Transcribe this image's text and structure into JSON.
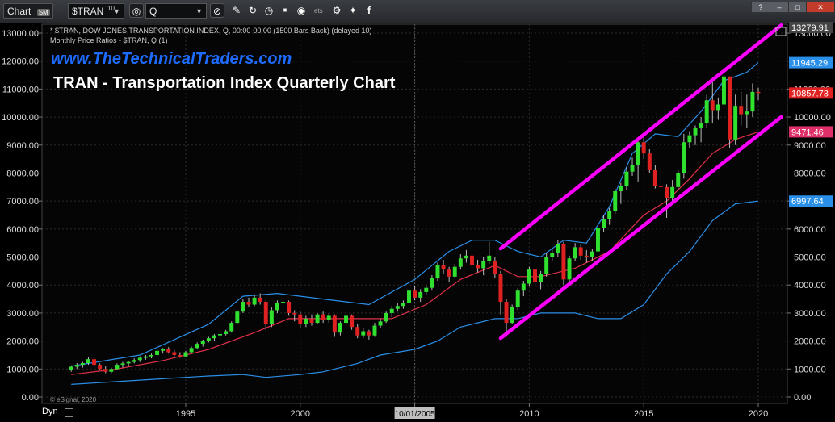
{
  "toolbar": {
    "chart_tab": "Chart",
    "chart_badge": "SM",
    "symbol": "$TRAN",
    "symbol_sup": "10",
    "interval": "Q",
    "icons": [
      "target-icon",
      "pencil-icon",
      "refresh-icon",
      "clock-icon",
      "link-icon",
      "eye-icon",
      "settings-icon",
      "twitter-icon",
      "facebook-icon"
    ],
    "small_text": "ets"
  },
  "header": {
    "line1": "* $TRAN, DOW JONES TRANSPORTATION INDEX, Q, 00:00-00:00 (1500 Bars Back) (delayed 10)",
    "line2": "Monthly Price Ratios - $TRAN, Q (1)",
    "website": "www.TheTechnicalTraders.com",
    "title": "TRAN - Transportation Index Quarterly Chart",
    "copyright": "© eSignal, 2020"
  },
  "footer": {
    "dyn_label": "Dyn",
    "cursor_date": "10/01/2005"
  },
  "colors": {
    "background": "#000000",
    "bull": "#2fe02f",
    "bear": "#e02121",
    "channel": "#ff00ff",
    "bollinger": "#2a8fe8",
    "ma": "#e0304a",
    "website": "#1e6cff"
  },
  "chart_data": {
    "type": "candlestick",
    "title": "TRAN - Transportation Index Quarterly Chart",
    "x_ticks": [
      "1995",
      "2000",
      "2005",
      "2010",
      "2015",
      "2020"
    ],
    "y_ticks": [
      "0.00",
      "1000.00",
      "2000.00",
      "3000.00",
      "4000.00",
      "5000.00",
      "6000.00",
      "7000.00",
      "8000.00",
      "9000.00",
      "10000.00",
      "11000.00",
      "12000.00",
      "13000.00"
    ],
    "ylim": [
      0,
      13279.91
    ],
    "price_labels": [
      {
        "label": "13279.91",
        "value": 13279.91,
        "color": "#444444"
      },
      {
        "label": "11945.29",
        "value": 11945.29,
        "color": "#2a8fe8"
      },
      {
        "label": "10857.73",
        "value": 10857.73,
        "color": "#e02121"
      },
      {
        "label": "9471.46",
        "value": 9471.46,
        "color": "#e0306a"
      },
      {
        "label": "6997.64",
        "value": 6997.64,
        "color": "#2a8fe8"
      }
    ],
    "candles": [
      {
        "t": 1990.0,
        "o": 960,
        "h": 1130,
        "l": 900,
        "c": 1080
      },
      {
        "t": 1990.25,
        "o": 1080,
        "h": 1210,
        "l": 1000,
        "c": 1150
      },
      {
        "t": 1990.5,
        "o": 1150,
        "h": 1250,
        "l": 1050,
        "c": 1210
      },
      {
        "t": 1990.75,
        "o": 1210,
        "h": 1420,
        "l": 1150,
        "c": 1350
      },
      {
        "t": 1991.0,
        "o": 1350,
        "h": 1450,
        "l": 1100,
        "c": 1150
      },
      {
        "t": 1991.25,
        "o": 1150,
        "h": 1200,
        "l": 950,
        "c": 1000
      },
      {
        "t": 1991.5,
        "o": 1000,
        "h": 1100,
        "l": 850,
        "c": 900
      },
      {
        "t": 1991.75,
        "o": 900,
        "h": 1050,
        "l": 850,
        "c": 1000
      },
      {
        "t": 1992.0,
        "o": 1000,
        "h": 1200,
        "l": 950,
        "c": 1150
      },
      {
        "t": 1992.25,
        "o": 1150,
        "h": 1250,
        "l": 1050,
        "c": 1200
      },
      {
        "t": 1992.5,
        "o": 1200,
        "h": 1300,
        "l": 1120,
        "c": 1250
      },
      {
        "t": 1992.75,
        "o": 1250,
        "h": 1380,
        "l": 1200,
        "c": 1320
      },
      {
        "t": 1993.0,
        "o": 1320,
        "h": 1450,
        "l": 1250,
        "c": 1400
      },
      {
        "t": 1993.25,
        "o": 1400,
        "h": 1500,
        "l": 1330,
        "c": 1450
      },
      {
        "t": 1993.5,
        "o": 1450,
        "h": 1550,
        "l": 1380,
        "c": 1500
      },
      {
        "t": 1993.75,
        "o": 1500,
        "h": 1700,
        "l": 1450,
        "c": 1650
      },
      {
        "t": 1994.0,
        "o": 1650,
        "h": 1750,
        "l": 1550,
        "c": 1700
      },
      {
        "t": 1994.25,
        "o": 1700,
        "h": 1780,
        "l": 1550,
        "c": 1600
      },
      {
        "t": 1994.5,
        "o": 1600,
        "h": 1680,
        "l": 1450,
        "c": 1500
      },
      {
        "t": 1994.75,
        "o": 1500,
        "h": 1600,
        "l": 1400,
        "c": 1450
      },
      {
        "t": 1995.0,
        "o": 1450,
        "h": 1650,
        "l": 1420,
        "c": 1600
      },
      {
        "t": 1995.25,
        "o": 1600,
        "h": 1800,
        "l": 1550,
        "c": 1750
      },
      {
        "t": 1995.5,
        "o": 1750,
        "h": 1950,
        "l": 1700,
        "c": 1900
      },
      {
        "t": 1995.75,
        "o": 1900,
        "h": 2050,
        "l": 1800,
        "c": 2000
      },
      {
        "t": 1996.0,
        "o": 2000,
        "h": 2150,
        "l": 1950,
        "c": 2100
      },
      {
        "t": 1996.25,
        "o": 2100,
        "h": 2250,
        "l": 2000,
        "c": 2200
      },
      {
        "t": 1996.5,
        "o": 2200,
        "h": 2300,
        "l": 2050,
        "c": 2250
      },
      {
        "t": 1996.75,
        "o": 2250,
        "h": 2400,
        "l": 2200,
        "c": 2350
      },
      {
        "t": 1997.0,
        "o": 2350,
        "h": 2700,
        "l": 2300,
        "c": 2650
      },
      {
        "t": 1997.25,
        "o": 2650,
        "h": 3100,
        "l": 2600,
        "c": 3050
      },
      {
        "t": 1997.5,
        "o": 3050,
        "h": 3500,
        "l": 3000,
        "c": 3400
      },
      {
        "t": 1997.75,
        "o": 3400,
        "h": 3550,
        "l": 3200,
        "c": 3300
      },
      {
        "t": 1998.0,
        "o": 3300,
        "h": 3650,
        "l": 3250,
        "c": 3550
      },
      {
        "t": 1998.25,
        "o": 3550,
        "h": 3700,
        "l": 3300,
        "c": 3400
      },
      {
        "t": 1998.5,
        "o": 3400,
        "h": 3450,
        "l": 2400,
        "c": 2600
      },
      {
        "t": 1998.75,
        "o": 2600,
        "h": 3200,
        "l": 2500,
        "c": 3100
      },
      {
        "t": 1999.0,
        "o": 3100,
        "h": 3450,
        "l": 3000,
        "c": 3350
      },
      {
        "t": 1999.25,
        "o": 3350,
        "h": 3550,
        "l": 3200,
        "c": 3400
      },
      {
        "t": 1999.5,
        "o": 3400,
        "h": 3450,
        "l": 2900,
        "c": 3000
      },
      {
        "t": 1999.75,
        "o": 3000,
        "h": 3100,
        "l": 2700,
        "c": 2950
      },
      {
        "t": 2000.0,
        "o": 2950,
        "h": 3050,
        "l": 2450,
        "c": 2600
      },
      {
        "t": 2000.25,
        "o": 2600,
        "h": 2900,
        "l": 2500,
        "c": 2800
      },
      {
        "t": 2000.5,
        "o": 2800,
        "h": 2950,
        "l": 2550,
        "c": 2650
      },
      {
        "t": 2000.75,
        "o": 2650,
        "h": 3000,
        "l": 2600,
        "c": 2950
      },
      {
        "t": 2001.0,
        "o": 2950,
        "h": 3050,
        "l": 2650,
        "c": 2750
      },
      {
        "t": 2001.25,
        "o": 2750,
        "h": 3000,
        "l": 2650,
        "c": 2900
      },
      {
        "t": 2001.5,
        "o": 2900,
        "h": 2950,
        "l": 2150,
        "c": 2300
      },
      {
        "t": 2001.75,
        "o": 2300,
        "h": 2700,
        "l": 2200,
        "c": 2650
      },
      {
        "t": 2002.0,
        "o": 2650,
        "h": 3000,
        "l": 2550,
        "c": 2900
      },
      {
        "t": 2002.25,
        "o": 2900,
        "h": 2950,
        "l": 2400,
        "c": 2500
      },
      {
        "t": 2002.5,
        "o": 2500,
        "h": 2600,
        "l": 2100,
        "c": 2200
      },
      {
        "t": 2002.75,
        "o": 2200,
        "h": 2450,
        "l": 2100,
        "c": 2350
      },
      {
        "t": 2003.0,
        "o": 2350,
        "h": 2400,
        "l": 2050,
        "c": 2200
      },
      {
        "t": 2003.25,
        "o": 2200,
        "h": 2650,
        "l": 2150,
        "c": 2550
      },
      {
        "t": 2003.5,
        "o": 2550,
        "h": 2800,
        "l": 2450,
        "c": 2700
      },
      {
        "t": 2003.75,
        "o": 2700,
        "h": 3050,
        "l": 2650,
        "c": 3000
      },
      {
        "t": 2004.0,
        "o": 3000,
        "h": 3250,
        "l": 2850,
        "c": 3150
      },
      {
        "t": 2004.25,
        "o": 3150,
        "h": 3350,
        "l": 3050,
        "c": 3250
      },
      {
        "t": 2004.5,
        "o": 3250,
        "h": 3450,
        "l": 3150,
        "c": 3350
      },
      {
        "t": 2004.75,
        "o": 3350,
        "h": 3850,
        "l": 3300,
        "c": 3800
      },
      {
        "t": 2005.0,
        "o": 3800,
        "h": 3950,
        "l": 3450,
        "c": 3550
      },
      {
        "t": 2005.25,
        "o": 3550,
        "h": 3850,
        "l": 3400,
        "c": 3750
      },
      {
        "t": 2005.5,
        "o": 3750,
        "h": 4000,
        "l": 3650,
        "c": 3900
      },
      {
        "t": 2005.75,
        "o": 3900,
        "h": 4350,
        "l": 3800,
        "c": 4250
      },
      {
        "t": 2006.0,
        "o": 4250,
        "h": 4800,
        "l": 4150,
        "c": 4700
      },
      {
        "t": 2006.25,
        "o": 4700,
        "h": 4900,
        "l": 4400,
        "c": 4550
      },
      {
        "t": 2006.5,
        "o": 4550,
        "h": 4650,
        "l": 4100,
        "c": 4300
      },
      {
        "t": 2006.75,
        "o": 4300,
        "h": 4750,
        "l": 4250,
        "c": 4650
      },
      {
        "t": 2007.0,
        "o": 4650,
        "h": 5100,
        "l": 4550,
        "c": 4950
      },
      {
        "t": 2007.25,
        "o": 4950,
        "h": 5250,
        "l": 4800,
        "c": 5050
      },
      {
        "t": 2007.5,
        "o": 5050,
        "h": 5150,
        "l": 4500,
        "c": 4700
      },
      {
        "t": 2007.75,
        "o": 4700,
        "h": 4900,
        "l": 4450,
        "c": 4600
      },
      {
        "t": 2008.0,
        "o": 4600,
        "h": 5000,
        "l": 4350,
        "c": 4850
      },
      {
        "t": 2008.25,
        "o": 4850,
        "h": 5550,
        "l": 4750,
        "c": 5050
      },
      {
        "t": 2008.5,
        "o": 4850,
        "h": 5000,
        "l": 4250,
        "c": 4400
      },
      {
        "t": 2008.75,
        "o": 4400,
        "h": 4500,
        "l": 2950,
        "c": 3400
      },
      {
        "t": 2009.0,
        "o": 3400,
        "h": 3500,
        "l": 2150,
        "c": 2650
      },
      {
        "t": 2009.25,
        "o": 2650,
        "h": 3300,
        "l": 2600,
        "c": 3200
      },
      {
        "t": 2009.5,
        "o": 3200,
        "h": 3900,
        "l": 3100,
        "c": 3800
      },
      {
        "t": 2009.75,
        "o": 3800,
        "h": 4150,
        "l": 3600,
        "c": 4050
      },
      {
        "t": 2010.0,
        "o": 4050,
        "h": 4650,
        "l": 3950,
        "c": 4550
      },
      {
        "t": 2010.25,
        "o": 4550,
        "h": 4700,
        "l": 3950,
        "c": 4100
      },
      {
        "t": 2010.5,
        "o": 4100,
        "h": 4500,
        "l": 3850,
        "c": 4400
      },
      {
        "t": 2010.75,
        "o": 4400,
        "h": 5150,
        "l": 4300,
        "c": 5000
      },
      {
        "t": 2011.0,
        "o": 5000,
        "h": 5300,
        "l": 4850,
        "c": 5150
      },
      {
        "t": 2011.25,
        "o": 5150,
        "h": 5600,
        "l": 5000,
        "c": 5450
      },
      {
        "t": 2011.5,
        "o": 5450,
        "h": 5550,
        "l": 4000,
        "c": 4200
      },
      {
        "t": 2011.75,
        "o": 4200,
        "h": 5050,
        "l": 4100,
        "c": 4950
      },
      {
        "t": 2012.0,
        "o": 4950,
        "h": 5500,
        "l": 4850,
        "c": 5350
      },
      {
        "t": 2012.25,
        "o": 5350,
        "h": 5450,
        "l": 4900,
        "c": 5050
      },
      {
        "t": 2012.5,
        "o": 5050,
        "h": 5250,
        "l": 4800,
        "c": 5000
      },
      {
        "t": 2012.75,
        "o": 5000,
        "h": 5300,
        "l": 4850,
        "c": 5200
      },
      {
        "t": 2013.0,
        "o": 5200,
        "h": 6200,
        "l": 5150,
        "c": 6050
      },
      {
        "t": 2013.25,
        "o": 6050,
        "h": 6500,
        "l": 5900,
        "c": 6350
      },
      {
        "t": 2013.5,
        "o": 6350,
        "h": 6750,
        "l": 6150,
        "c": 6650
      },
      {
        "t": 2013.75,
        "o": 6650,
        "h": 7450,
        "l": 6550,
        "c": 7350
      },
      {
        "t": 2014.0,
        "o": 7350,
        "h": 7650,
        "l": 6900,
        "c": 7550
      },
      {
        "t": 2014.25,
        "o": 7550,
        "h": 8200,
        "l": 7400,
        "c": 8050
      },
      {
        "t": 2014.5,
        "o": 8050,
        "h": 8550,
        "l": 7900,
        "c": 8300
      },
      {
        "t": 2014.75,
        "o": 8300,
        "h": 9200,
        "l": 7700,
        "c": 9100
      },
      {
        "t": 2015.0,
        "o": 9100,
        "h": 9300,
        "l": 8500,
        "c": 8700
      },
      {
        "t": 2015.25,
        "o": 8700,
        "h": 8850,
        "l": 8000,
        "c": 8100
      },
      {
        "t": 2015.5,
        "o": 8100,
        "h": 8300,
        "l": 7450,
        "c": 7550
      },
      {
        "t": 2015.75,
        "o": 7550,
        "h": 8100,
        "l": 7300,
        "c": 7500
      },
      {
        "t": 2016.0,
        "o": 7500,
        "h": 7600,
        "l": 6400,
        "c": 7100
      },
      {
        "t": 2016.25,
        "o": 7100,
        "h": 7750,
        "l": 6950,
        "c": 7500
      },
      {
        "t": 2016.5,
        "o": 7500,
        "h": 8100,
        "l": 7400,
        "c": 8000
      },
      {
        "t": 2016.75,
        "o": 8000,
        "h": 9400,
        "l": 7800,
        "c": 9100
      },
      {
        "t": 2017.0,
        "o": 9100,
        "h": 9500,
        "l": 8900,
        "c": 9350
      },
      {
        "t": 2017.25,
        "o": 9350,
        "h": 9700,
        "l": 9000,
        "c": 9600
      },
      {
        "t": 2017.5,
        "o": 9600,
        "h": 10000,
        "l": 9100,
        "c": 9800
      },
      {
        "t": 2017.75,
        "o": 9800,
        "h": 10800,
        "l": 9600,
        "c": 10600
      },
      {
        "t": 2018.0,
        "o": 10600,
        "h": 11300,
        "l": 9800,
        "c": 10250
      },
      {
        "t": 2018.25,
        "o": 10250,
        "h": 10700,
        "l": 9900,
        "c": 10450
      },
      {
        "t": 2018.5,
        "o": 10450,
        "h": 11600,
        "l": 10300,
        "c": 11450
      },
      {
        "t": 2018.75,
        "o": 11450,
        "h": 11450,
        "l": 8900,
        "c": 9200
      },
      {
        "t": 2019.0,
        "o": 9200,
        "h": 10800,
        "l": 9000,
        "c": 10400
      },
      {
        "t": 2019.25,
        "o": 10400,
        "h": 10900,
        "l": 9700,
        "c": 10100
      },
      {
        "t": 2019.5,
        "o": 10100,
        "h": 10800,
        "l": 9600,
        "c": 10200
      },
      {
        "t": 2019.75,
        "o": 10200,
        "h": 11200,
        "l": 10000,
        "c": 10900
      },
      {
        "t": 2020.0,
        "o": 10900,
        "h": 11050,
        "l": 10600,
        "c": 10857.73
      }
    ],
    "bollinger_upper": [
      [
        1990,
        1100
      ],
      [
        1993,
        1500
      ],
      [
        1996,
        2600
      ],
      [
        1997.5,
        3600
      ],
      [
        1999,
        3700
      ],
      [
        2001,
        3500
      ],
      [
        2003,
        3300
      ],
      [
        2005,
        4200
      ],
      [
        2006.5,
        5200
      ],
      [
        2007.5,
        5600
      ],
      [
        2008.5,
        5600
      ],
      [
        2009.5,
        5200
      ],
      [
        2010.5,
        5000
      ],
      [
        2011.5,
        5600
      ],
      [
        2012.5,
        5500
      ],
      [
        2013.5,
        6800
      ],
      [
        2014.5,
        8700
      ],
      [
        2015.5,
        9400
      ],
      [
        2016.5,
        9300
      ],
      [
        2017.5,
        10200
      ],
      [
        2018.5,
        11300
      ],
      [
        2019.5,
        11600
      ],
      [
        2020,
        11945.29
      ]
    ],
    "bollinger_lower": [
      [
        1990,
        450
      ],
      [
        1992,
        550
      ],
      [
        1994,
        650
      ],
      [
        1996,
        750
      ],
      [
        1997.5,
        800
      ],
      [
        1998.5,
        700
      ],
      [
        2000,
        800
      ],
      [
        2001,
        900
      ],
      [
        2002.5,
        1200
      ],
      [
        2003.5,
        1500
      ],
      [
        2005,
        1700
      ],
      [
        2006,
        2000
      ],
      [
        2007,
        2500
      ],
      [
        2008.5,
        2800
      ],
      [
        2009.5,
        2800
      ],
      [
        2010.5,
        3000
      ],
      [
        2012,
        3000
      ],
      [
        2013,
        2800
      ],
      [
        2014,
        2800
      ],
      [
        2015,
        3300
      ],
      [
        2016,
        4400
      ],
      [
        2017,
        5200
      ],
      [
        2018,
        6300
      ],
      [
        2019,
        6900
      ],
      [
        2020,
        6997.64
      ]
    ],
    "moving_average": [
      [
        1990,
        800
      ],
      [
        1992,
        1000
      ],
      [
        1994,
        1300
      ],
      [
        1996,
        1700
      ],
      [
        1998,
        2300
      ],
      [
        1999.5,
        2800
      ],
      [
        2001,
        2800
      ],
      [
        2002.5,
        2800
      ],
      [
        2004,
        2800
      ],
      [
        2005.5,
        3300
      ],
      [
        2007,
        4200
      ],
      [
        2008.5,
        4700
      ],
      [
        2009.5,
        4300
      ],
      [
        2010.5,
        4300
      ],
      [
        2012,
        4600
      ],
      [
        2013.5,
        5200
      ],
      [
        2015,
        6500
      ],
      [
        2016,
        7000
      ],
      [
        2017,
        7800
      ],
      [
        2018,
        8700
      ],
      [
        2019,
        9200
      ],
      [
        2020,
        9471.46
      ]
    ],
    "channel_upper": [
      [
        2008.75,
        5300
      ],
      [
        2021,
        13279.91
      ]
    ],
    "channel_lower": [
      [
        2008.75,
        2100
      ],
      [
        2021,
        10000
      ]
    ],
    "cursor_x": 2005.0
  }
}
